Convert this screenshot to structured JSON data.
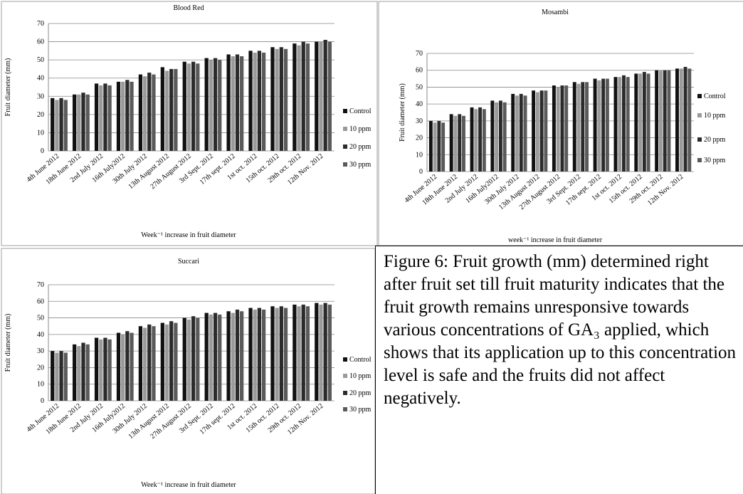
{
  "chart_data": [
    {
      "type": "bar",
      "title": "Blood Red",
      "y_label": "Fruit diameter (mm)",
      "x_label": "Week⁻¹ increase in fruit diameter",
      "categories": [
        "4th June 2012",
        "18th June 2012",
        "2nd July 2012",
        "16th July2012",
        "30th July 2012",
        "13th August 2012",
        "27th August 2012",
        "3rd Sept. 2012",
        "17th sept. 2012",
        "1st oct. 2012",
        "15th oct. 2012",
        "29th oct. 2012",
        "12th Nov. 2012"
      ],
      "series": [
        {
          "name": "Control",
          "color": "#111111",
          "values": [
            29,
            31,
            37,
            38,
            42,
            46,
            49,
            51,
            53,
            55,
            57,
            59,
            60
          ]
        },
        {
          "name": "10 ppm",
          "color": "#9a9a9a",
          "values": [
            28,
            31,
            36,
            38,
            41,
            44,
            48,
            50,
            52,
            54,
            56,
            58,
            60
          ]
        },
        {
          "name": "20 ppm",
          "color": "#2b2b2b",
          "values": [
            29,
            32,
            37,
            39,
            43,
            45,
            49,
            51,
            53,
            55,
            57,
            60,
            61
          ]
        },
        {
          "name": "30 ppm",
          "color": "#5a5a5a",
          "values": [
            28,
            31,
            36,
            38,
            42,
            45,
            48,
            50,
            52,
            54,
            56,
            59,
            60
          ]
        }
      ],
      "ylim": [
        0,
        70
      ],
      "yticks": [
        0,
        10,
        20,
        30,
        40,
        50,
        60,
        70
      ],
      "grid": true
    },
    {
      "type": "bar",
      "title": "Mosambi",
      "y_label": "Fruit diameter (mm)",
      "x_label": "week⁻¹ increase in fruit diameter",
      "categories": [
        "4th June 2012",
        "18th June 2012",
        "2nd July 2012",
        "16th July2012",
        "30th July 2012",
        "13th August 2012",
        "27th August 2012",
        "3rd Sept. 2012",
        "17th sept. 2012",
        "1st oct. 2012",
        "15th oct. 2012",
        "29th oct. 2012",
        "12th Nov. 2012"
      ],
      "series": [
        {
          "name": "Control",
          "color": "#111111",
          "values": [
            30,
            34,
            38,
            42,
            46,
            48,
            51,
            53,
            55,
            56,
            58,
            60,
            61
          ]
        },
        {
          "name": "10 ppm",
          "color": "#9a9a9a",
          "values": [
            29,
            33,
            37,
            41,
            45,
            47,
            50,
            52,
            54,
            56,
            58,
            60,
            61
          ]
        },
        {
          "name": "20 ppm",
          "color": "#2b2b2b",
          "values": [
            30,
            34,
            38,
            42,
            46,
            48,
            51,
            53,
            55,
            57,
            59,
            60,
            62
          ]
        },
        {
          "name": "30 ppm",
          "color": "#5a5a5a",
          "values": [
            29,
            33,
            37,
            41,
            45,
            48,
            51,
            53,
            55,
            56,
            58,
            60,
            61
          ]
        }
      ],
      "ylim": [
        0,
        70
      ],
      "yticks": [
        0,
        10,
        20,
        30,
        40,
        50,
        60,
        70
      ],
      "grid": true
    },
    {
      "type": "bar",
      "title": "Succari",
      "y_label": "Fruit diameter (mm)",
      "x_label": "Week⁻¹ increase in fruit diameter",
      "categories": [
        "4th June 2012",
        "18th June 2012",
        "2nd July 2012",
        "16th July2012",
        "30th July 2012",
        "13th August 2012",
        "27th August 2012",
        "3rd Sept. 2012",
        "17th sept. 2012",
        "1st oct. 2012",
        "15th oct. 2012",
        "29th oct. 2012",
        "12th Nov. 2012"
      ],
      "series": [
        {
          "name": "Control",
          "color": "#111111",
          "values": [
            30,
            34,
            38,
            41,
            45,
            47,
            50,
            53,
            54,
            56,
            57,
            58,
            59
          ]
        },
        {
          "name": "10 ppm",
          "color": "#9a9a9a",
          "values": [
            29,
            33,
            37,
            40,
            44,
            46,
            49,
            52,
            53,
            55,
            56,
            57,
            58
          ]
        },
        {
          "name": "20 ppm",
          "color": "#2b2b2b",
          "values": [
            30,
            35,
            38,
            42,
            46,
            48,
            51,
            53,
            55,
            56,
            57,
            58,
            59
          ]
        },
        {
          "name": "30 ppm",
          "color": "#5a5a5a",
          "values": [
            29,
            34,
            37,
            41,
            45,
            47,
            50,
            52,
            54,
            55,
            56,
            57,
            58
          ]
        }
      ],
      "ylim": [
        0,
        70
      ],
      "yticks": [
        0,
        10,
        20,
        30,
        40,
        50,
        60,
        70
      ],
      "grid": true
    }
  ],
  "caption": "Figure 6: Fruit growth (mm) determined right after fruit set till fruit maturity indicates that the fruit growth remains unresponsive towards various concentrations of GA₃ applied, which shows that its application up to this concentration level is safe and the fruits did not affect negatively."
}
